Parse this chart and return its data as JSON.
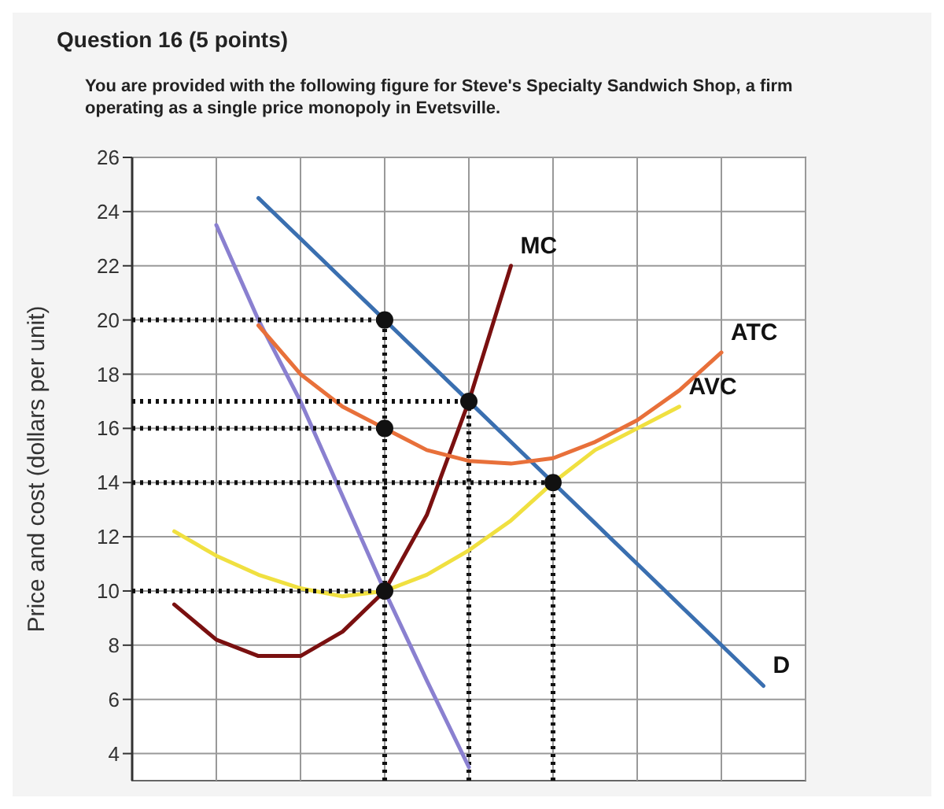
{
  "chart_data": {
    "type": "line",
    "title": "Question 16 (5 points)",
    "subtitle": "You are provided with the following figure for Steve's Specialty Sandwich Shop, a firm operating as a single price monopoly in Evetsville.",
    "ylabel": "Price and cost (dollars per unit)",
    "categories": [
      null,
      null,
      null,
      null,
      null,
      null,
      null,
      null,
      null,
      null,
      null,
      null,
      null,
      null,
      null,
      null,
      null
    ],
    "ylim": [
      3,
      26
    ],
    "yticks": [
      4,
      6,
      8,
      10,
      12,
      14,
      16,
      18,
      20,
      22,
      24,
      26
    ],
    "grid": true,
    "series": [
      {
        "type": "line",
        "name": "D",
        "color": "#3a6fb0",
        "values": [
          null,
          null,
          null,
          24.5,
          23,
          21.5,
          20,
          18.5,
          17,
          15.5,
          14,
          12.5,
          11,
          9.5,
          8,
          6.5,
          null
        ]
      },
      {
        "type": "line",
        "color": "#8a80d0",
        "values": [
          null,
          null,
          23.5,
          20,
          17,
          13.5,
          10,
          6.7,
          3.5,
          null,
          null,
          null,
          null,
          null,
          null,
          null,
          null
        ]
      },
      {
        "type": "line",
        "name": "MC",
        "color": "#7a1010",
        "values": [
          null,
          9.5,
          8.2,
          7.6,
          7.6,
          8.5,
          10,
          12.8,
          17,
          22,
          null,
          null,
          null,
          null,
          null,
          null,
          null
        ]
      },
      {
        "type": "line",
        "name": "ATC",
        "color": "#e8703a",
        "values": [
          null,
          null,
          null,
          19.8,
          18,
          16.8,
          16,
          15.2,
          14.8,
          14.7,
          14.9,
          15.5,
          16.3,
          17.4,
          18.8,
          null,
          null
        ]
      },
      {
        "type": "line",
        "name": "AVC",
        "color": "#f0e040",
        "values": [
          null,
          12.2,
          11.3,
          10.6,
          10.1,
          9.8,
          10,
          10.6,
          11.5,
          12.6,
          14,
          15.2,
          16,
          16.8,
          null,
          null,
          null
        ]
      },
      {
        "type": "line",
        "color": "#111111",
        "line_style": "dotted",
        "values": [
          20,
          20,
          20,
          20,
          20,
          20,
          20,
          null,
          null,
          null,
          null,
          null,
          null,
          null,
          null,
          null,
          null
        ]
      },
      {
        "type": "line",
        "color": "#111111",
        "line_style": "dotted",
        "values": [
          16,
          16,
          16,
          16,
          16,
          16,
          16,
          null,
          null,
          null,
          null,
          null,
          null,
          null,
          null,
          null,
          null
        ]
      },
      {
        "type": "line",
        "color": "#111111",
        "line_style": "dotted",
        "values": [
          10,
          10,
          10,
          10,
          10,
          10,
          10,
          null,
          null,
          null,
          null,
          null,
          null,
          null,
          null,
          null,
          null
        ]
      },
      {
        "type": "line",
        "color": "#111111",
        "line_style": "dotted",
        "values": [
          17,
          17,
          17,
          17,
          17,
          17,
          17,
          17,
          17,
          null,
          null,
          null,
          null,
          null,
          null,
          null,
          null
        ]
      },
      {
        "type": "line",
        "color": "#111111",
        "line_style": "dotted",
        "values": [
          14,
          14,
          14,
          14,
          14,
          14,
          14,
          14,
          14,
          14,
          14,
          null,
          null,
          null,
          null,
          null,
          null
        ]
      },
      {
        "type": "scatter",
        "color": "#111111",
        "marker": "circle",
        "values": [
          null,
          null,
          null,
          null,
          null,
          null,
          20,
          null,
          17,
          null,
          14,
          null,
          null,
          null,
          null,
          null,
          null
        ]
      },
      {
        "type": "scatter",
        "color": "#111111",
        "marker": "circle",
        "values": [
          null,
          null,
          null,
          null,
          null,
          null,
          16,
          null,
          null,
          null,
          null,
          null,
          null,
          null,
          null,
          null,
          null
        ]
      },
      {
        "type": "scatter",
        "color": "#111111",
        "marker": "circle",
        "values": [
          null,
          null,
          null,
          null,
          null,
          null,
          10,
          null,
          null,
          null,
          null,
          null,
          null,
          null,
          null,
          null,
          null
        ]
      }
    ]
  }
}
